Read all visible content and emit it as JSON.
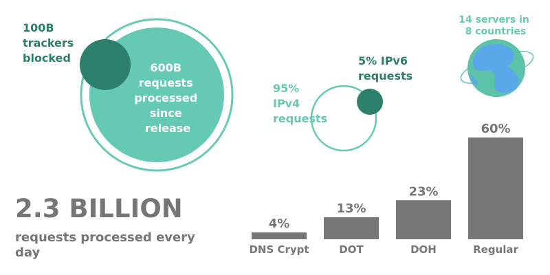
{
  "colors": {
    "teal_light": "#66c9b4",
    "teal_dark": "#2c7f6b",
    "bar_gray": "#767676",
    "ocean": "#5cc3a8",
    "land": "#5aa8ea"
  },
  "trackers": {
    "lines": [
      "100B",
      "trackers",
      "blocked"
    ]
  },
  "processed": {
    "lines": [
      "600B",
      "requests",
      "processed",
      "since",
      "release"
    ]
  },
  "ipv4": {
    "lines": [
      "95%",
      "IPv4",
      "requests"
    ]
  },
  "ipv6": {
    "lines": [
      "5% IPv6",
      "requests"
    ]
  },
  "servers": {
    "lines": [
      "14 servers in",
      "8 countries"
    ],
    "icon": "globe-icon"
  },
  "daily": {
    "big": "2.3 BILLION",
    "line1": "requests processed every",
    "line2": "day"
  },
  "chart_data": {
    "type": "bar",
    "categories": [
      "DNS Crypt",
      "DOT",
      "DOH",
      "Regular"
    ],
    "values": [
      4,
      13,
      23,
      60
    ],
    "value_labels": [
      "4%",
      "13%",
      "23%",
      "60%"
    ],
    "ylim": [
      0,
      60
    ]
  }
}
